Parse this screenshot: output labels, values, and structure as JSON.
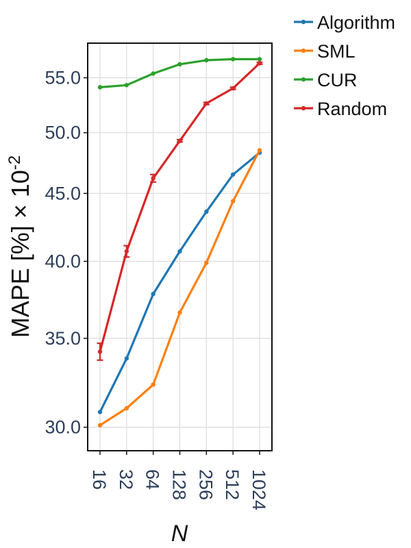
{
  "chart_data": {
    "type": "line",
    "x_scale": "log2",
    "y_scale": "log",
    "categories": [
      "16",
      "32",
      "64",
      "128",
      "256",
      "512",
      "1024"
    ],
    "x": [
      16,
      32,
      64,
      128,
      256,
      512,
      1024
    ],
    "xlabel": "N",
    "ylabel_main": "MAPE [%] × 10",
    "ylabel_exp": "-2",
    "yticks": [
      30.0,
      35.0,
      40.0,
      45.0,
      50.0,
      55.0
    ],
    "ytick_labels": [
      "30.0",
      "35.0",
      "40.0",
      "45.0",
      "50.0",
      "55.0"
    ],
    "ylim": [
      28.8,
      58.4
    ],
    "grid": true,
    "legend_position": "outside-top-right",
    "series": [
      {
        "name": "Algorithm",
        "color": "#1f77b4",
        "values": [
          30.8,
          33.8,
          37.8,
          40.7,
          43.6,
          46.5,
          48.3
        ]
      },
      {
        "name": "SML",
        "color": "#ff7f0e",
        "values": [
          30.1,
          31.0,
          32.3,
          36.6,
          39.9,
          44.4,
          48.5
        ]
      },
      {
        "name": "CUR",
        "color": "#2ca02c",
        "values": [
          54.1,
          54.3,
          55.4,
          56.3,
          56.7,
          56.8,
          56.8
        ]
      },
      {
        "name": "Random",
        "color": "#d62728",
        "values": [
          34.2,
          40.7,
          46.2,
          49.3,
          52.6,
          54.0,
          56.4
        ],
        "error": [
          0.5,
          0.4,
          0.3,
          0.1,
          0.1,
          0.1,
          0.1
        ]
      }
    ]
  }
}
